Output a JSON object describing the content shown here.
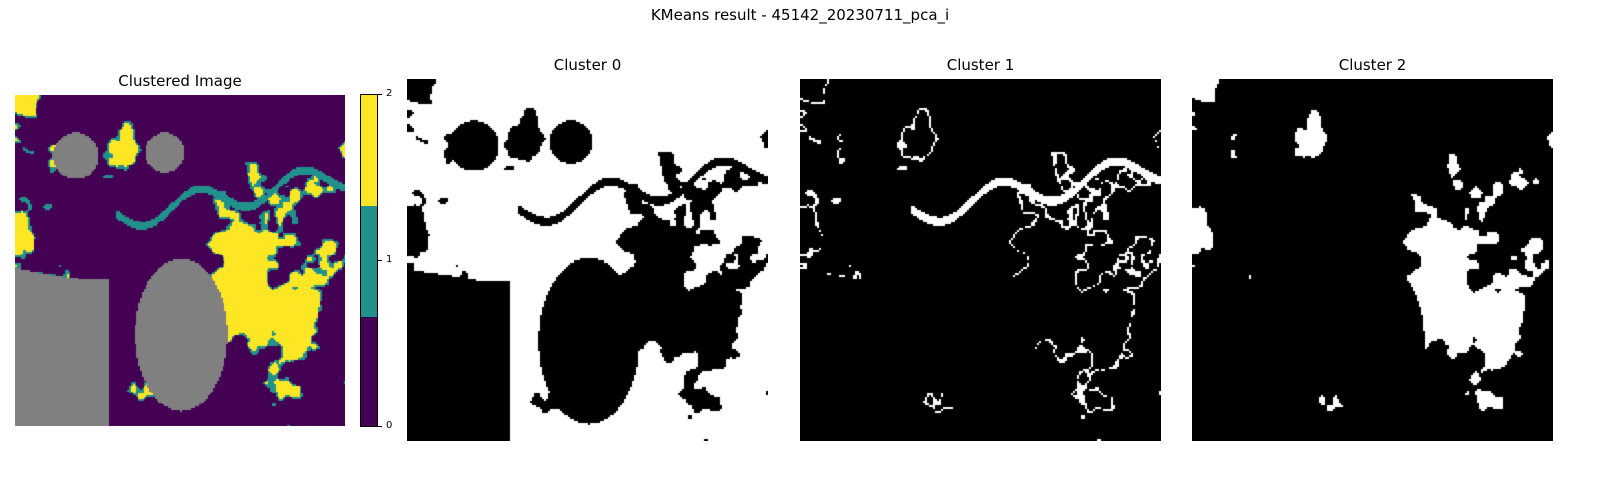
{
  "figure": {
    "title": "KMeans result - 45142_20230711_pca_i"
  },
  "panels": [
    {
      "title": "Clustered Image",
      "kind": "clustered"
    },
    {
      "title": "Cluster 0",
      "kind": "mask",
      "cluster": 0
    },
    {
      "title": "Cluster 1",
      "kind": "mask",
      "cluster": 1
    },
    {
      "title": "Cluster 2",
      "kind": "mask",
      "cluster": 2
    }
  ],
  "colorbar": {
    "ticks": [
      "0",
      "1",
      "2"
    ],
    "colors": [
      "#440154",
      "#21918c",
      "#fde725"
    ]
  },
  "colors": {
    "nodata": "#808080",
    "mask_on": "#ffffff",
    "mask_off": "#000000"
  }
}
